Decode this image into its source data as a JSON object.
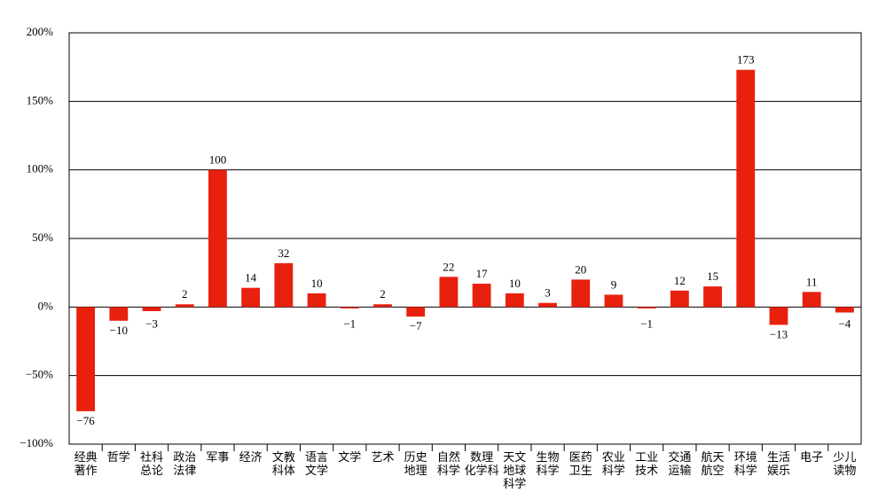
{
  "chart_data": {
    "type": "bar",
    "categories": [
      "经典\n著作",
      "哲学",
      "社科\n总论",
      "政治\n法律",
      "军事",
      "经济",
      "文教\n科体",
      "语言\n文学",
      "文学",
      "艺术",
      "历史\n地理",
      "自然\n科学",
      "数理\n化学科",
      "天文\n地球\n科学",
      "生物\n科学",
      "医药\n卫生",
      "农业\n科学",
      "工业\n技术",
      "交通\n运输",
      "航天\n航空",
      "环境\n科学",
      "生活\n娱乐",
      "电子",
      "少儿\n读物"
    ],
    "values": [
      -76,
      -10,
      -3,
      2,
      100,
      14,
      32,
      10,
      -1,
      2,
      -7,
      22,
      17,
      10,
      3,
      20,
      9,
      -1,
      12,
      15,
      173,
      -13,
      11,
      -4
    ],
    "value_labels": [
      "−76",
      "−10",
      "−3",
      "2",
      "100",
      "14",
      "32",
      "10",
      "−1",
      "2",
      "−7",
      "22",
      "17",
      "10",
      "3",
      "20",
      "9",
      "−1",
      "12",
      "15",
      "173",
      "−13",
      "11",
      "−4"
    ],
    "color": "#e8210f",
    "ylim": [
      -100,
      200
    ],
    "yticks": [
      {
        "value": -100,
        "label": "−100%"
      },
      {
        "value": -50,
        "label": "−50%"
      },
      {
        "value": 0,
        "label": "0%"
      },
      {
        "value": 50,
        "label": "50%"
      },
      {
        "value": 100,
        "label": "100%"
      },
      {
        "value": 150,
        "label": "150%"
      },
      {
        "value": 200,
        "label": "200%"
      }
    ],
    "grid": true
  }
}
